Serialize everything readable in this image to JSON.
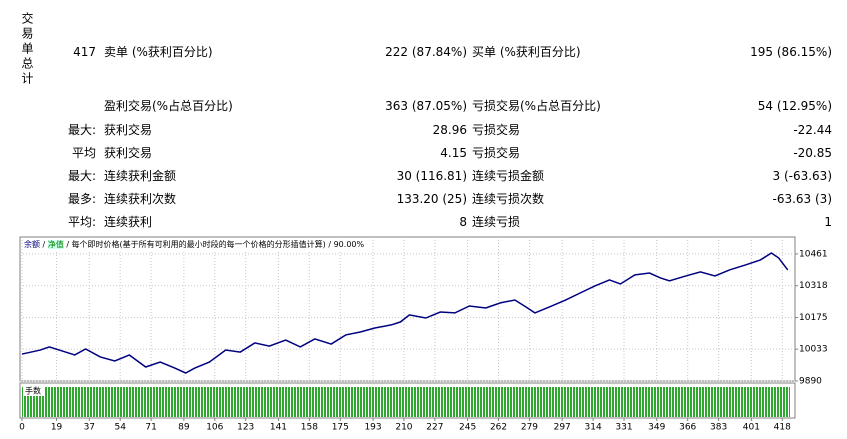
{
  "summary": {
    "side_label": "交易单总计",
    "rows": [
      {
        "lead": "417",
        "left_label": "卖单 (%获利百分比)",
        "left_value": "222 (87.84%)",
        "right_label": "买单 (%获利百分比)",
        "right_value": "195 (86.15%)"
      },
      {
        "left_label": "盈利交易(%占总百分比)",
        "left_value": "363 (87.05%)",
        "right_label": "亏损交易(%占总百分比)",
        "right_value": "54 (12.95%)"
      },
      {
        "lead": "最大:",
        "left_label": "获利交易",
        "left_value": "28.96",
        "right_label": "亏损交易",
        "right_value": "-22.44"
      },
      {
        "lead": "平均",
        "left_label": "获利交易",
        "left_value": "4.15",
        "right_label": "亏损交易",
        "right_value": "-20.85"
      },
      {
        "lead": "最大:",
        "left_label": "连续获利金额",
        "left_value": "30 (116.81)",
        "right_label": "连续亏损金额",
        "right_value": "3 (-63.63)"
      },
      {
        "lead": "最多:",
        "left_label": "连续获利次数",
        "left_value": "133.20 (25)",
        "right_label": "连续亏损次数",
        "right_value": "-63.63 (3)"
      },
      {
        "lead": "平均:",
        "left_label": "连续获利",
        "left_value": "8",
        "right_label": "连续亏损",
        "right_value": "1"
      }
    ]
  },
  "chart_data": {
    "type": "line",
    "equity_label": "净值",
    "model": "每个即时价格(基于所有可利用的最小时段的每一个价格的分形插值计算)",
    "quality": "90.00%",
    "lots_label": "手数",
    "x": [
      0,
      10,
      15,
      24,
      29,
      35,
      43,
      51,
      59,
      68,
      76,
      84,
      90,
      95,
      103,
      112,
      120,
      128,
      136,
      145,
      153,
      161,
      170,
      178,
      186,
      194,
      203,
      208,
      213,
      222,
      230,
      238,
      246,
      255,
      263,
      271,
      277,
      282,
      290,
      299,
      307,
      315,
      323,
      329,
      337,
      345,
      351,
      356,
      365,
      373,
      381,
      389,
      398,
      406,
      412,
      416,
      421
    ],
    "series": [
      {
        "name": "余额",
        "color": "#000080",
        "values": [
          10011,
          10029,
          10043,
          10020,
          10007,
          10034,
          9998,
          9980,
          10007,
          9953,
          9975,
          9948,
          9926,
          9948,
          9975,
          10029,
          10020,
          10061,
          10047,
          10074,
          10043,
          10079,
          10056,
          10097,
          10110,
          10128,
          10142,
          10155,
          10187,
          10173,
          10200,
          10196,
          10227,
          10218,
          10241,
          10254,
          10223,
          10196,
          10223,
          10254,
          10286,
          10317,
          10344,
          10326,
          10367,
          10375,
          10353,
          10340,
          10362,
          10380,
          10362,
          10389,
          10412,
          10434,
          10465,
          10443,
          10389
        ]
      }
    ],
    "xlim": [
      0,
      425
    ],
    "xticks": [
      0,
      19,
      37,
      54,
      71,
      89,
      106,
      123,
      141,
      158,
      175,
      193,
      210,
      227,
      245,
      262,
      279,
      297,
      314,
      331,
      349,
      366,
      383,
      401,
      418
    ],
    "ylim": [
      9890,
      10537
    ],
    "yticks": [
      9890,
      10033,
      10175,
      10318,
      10461
    ],
    "grid": true
  }
}
